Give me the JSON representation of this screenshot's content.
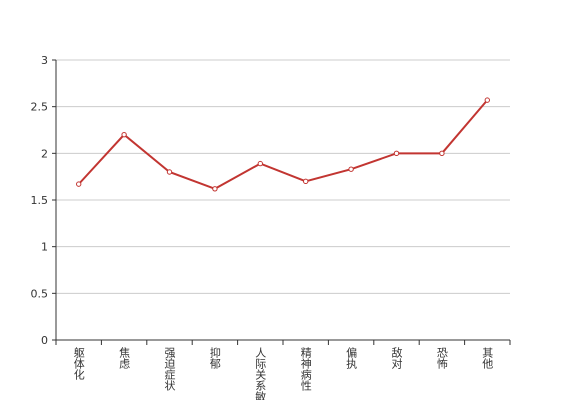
{
  "chart_data": {
    "type": "line",
    "categories": [
      "躯体化",
      "焦虑",
      "强迫症状",
      "抑郁",
      "人际关系敏感",
      "精神病性",
      "偏执",
      "敌对",
      "恐怖",
      "其他"
    ],
    "values": [
      1.67,
      2.2,
      1.8,
      1.62,
      1.89,
      1.7,
      1.83,
      2.0,
      2.0,
      2.57
    ],
    "color": "#c23531",
    "ylim": [
      0,
      3
    ],
    "yticks": [
      0,
      0.5,
      1,
      1.5,
      2,
      2.5,
      3
    ],
    "grid": true
  }
}
